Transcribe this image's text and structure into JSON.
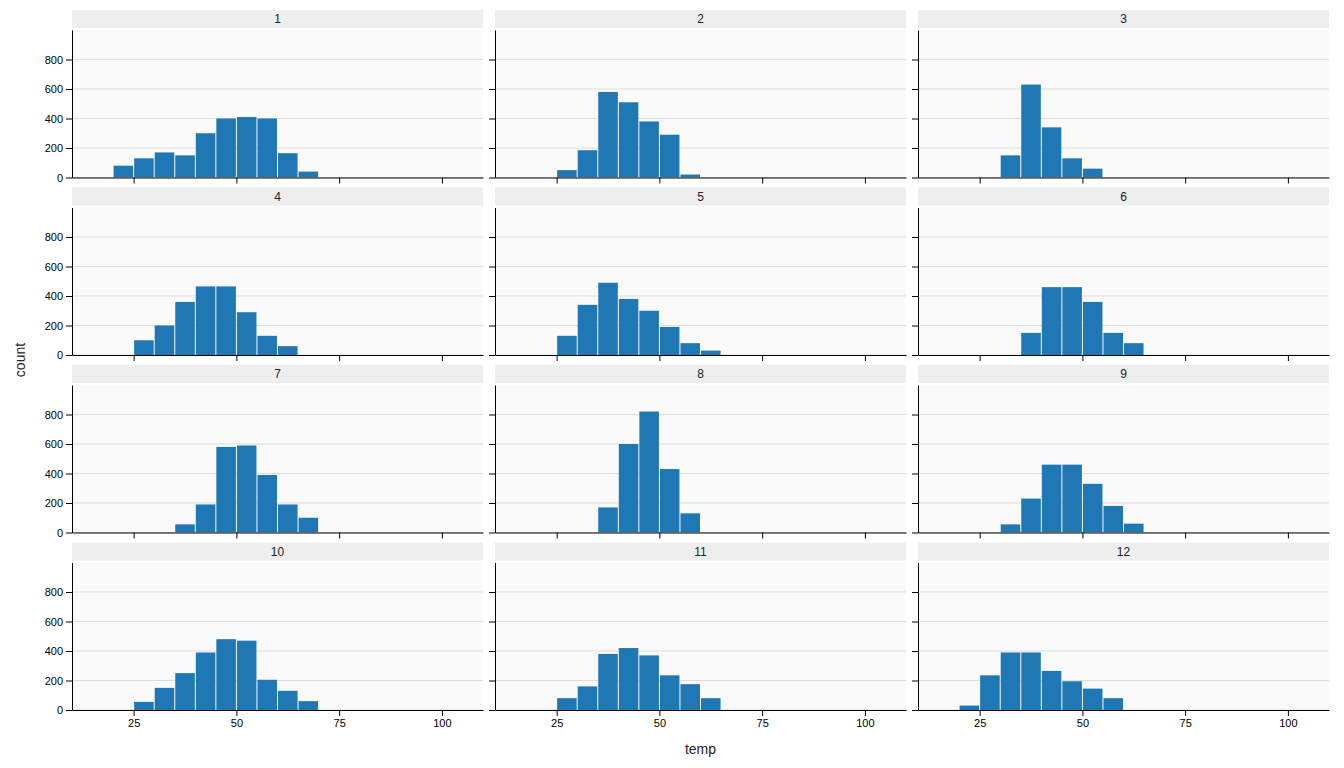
{
  "chart_data": [
    {
      "type": "histogram",
      "title": "1",
      "xlabel": "temp",
      "ylabel": "count",
      "bins": [
        10,
        15,
        20,
        25,
        30,
        35,
        40,
        45,
        50,
        55,
        60,
        65,
        70,
        75,
        80,
        85,
        90,
        95,
        100,
        105,
        110
      ],
      "values": [
        0,
        0,
        80,
        130,
        170,
        150,
        300,
        400,
        410,
        400,
        165,
        40,
        0,
        0,
        0,
        0,
        0,
        0,
        0,
        0
      ],
      "xlim": [
        10,
        110
      ],
      "ylim": [
        0,
        1000
      ],
      "xticks": [
        25,
        50,
        75,
        100
      ],
      "yticks": [
        0,
        200,
        400,
        600,
        800
      ],
      "grid": true,
      "tick_labels": "y"
    },
    {
      "type": "histogram",
      "title": "2",
      "bins": [
        10,
        15,
        20,
        25,
        30,
        35,
        40,
        45,
        50,
        55,
        60,
        65,
        70,
        75,
        80,
        85,
        90,
        95,
        100,
        105,
        110
      ],
      "values": [
        0,
        0,
        0,
        50,
        185,
        580,
        510,
        380,
        290,
        20,
        0,
        0,
        0,
        0,
        0,
        0,
        0,
        0,
        0,
        0
      ],
      "xlim": [
        10,
        110
      ],
      "ylim": [
        0,
        1000
      ],
      "xticks": [
        25,
        50,
        75,
        100
      ],
      "yticks": [
        0,
        200,
        400,
        600,
        800
      ],
      "grid": true,
      "tick_labels": false
    },
    {
      "type": "histogram",
      "title": "3",
      "bins": [
        10,
        15,
        20,
        25,
        30,
        35,
        40,
        45,
        50,
        55,
        60,
        65,
        70,
        75,
        80,
        85,
        90,
        95,
        100,
        105,
        110
      ],
      "values": [
        0,
        0,
        0,
        0,
        150,
        630,
        340,
        130,
        60,
        0,
        0,
        0,
        0,
        0,
        0,
        0,
        0,
        0,
        0,
        0
      ],
      "xlim": [
        10,
        110
      ],
      "ylim": [
        0,
        1000
      ],
      "xticks": [
        25,
        50,
        75,
        100
      ],
      "yticks": [
        0,
        200,
        400,
        600,
        800
      ],
      "grid": true,
      "tick_labels": false
    },
    {
      "type": "histogram",
      "title": "4",
      "bins": [
        10,
        15,
        20,
        25,
        30,
        35,
        40,
        45,
        50,
        55,
        60,
        65,
        70,
        75,
        80,
        85,
        90,
        95,
        100,
        105,
        110
      ],
      "values": [
        0,
        0,
        0,
        100,
        200,
        360,
        465,
        465,
        290,
        130,
        60,
        0,
        0,
        0,
        0,
        0,
        0,
        0,
        0,
        0
      ],
      "xlim": [
        10,
        110
      ],
      "ylim": [
        0,
        1000
      ],
      "xticks": [
        25,
        50,
        75,
        100
      ],
      "yticks": [
        0,
        200,
        400,
        600,
        800
      ],
      "grid": true,
      "tick_labels": "y"
    },
    {
      "type": "histogram",
      "title": "5",
      "bins": [
        10,
        15,
        20,
        25,
        30,
        35,
        40,
        45,
        50,
        55,
        60,
        65,
        70,
        75,
        80,
        85,
        90,
        95,
        100,
        105,
        110
      ],
      "values": [
        0,
        0,
        0,
        130,
        340,
        490,
        380,
        300,
        190,
        80,
        30,
        0,
        0,
        0,
        0,
        0,
        0,
        0,
        0,
        0
      ],
      "xlim": [
        10,
        110
      ],
      "ylim": [
        0,
        1000
      ],
      "xticks": [
        25,
        50,
        75,
        100
      ],
      "yticks": [
        0,
        200,
        400,
        600,
        800
      ],
      "grid": true,
      "tick_labels": false
    },
    {
      "type": "histogram",
      "title": "6",
      "bins": [
        10,
        15,
        20,
        25,
        30,
        35,
        40,
        45,
        50,
        55,
        60,
        65,
        70,
        75,
        80,
        85,
        90,
        95,
        100,
        105,
        110
      ],
      "values": [
        0,
        0,
        0,
        0,
        0,
        150,
        460,
        460,
        360,
        150,
        80,
        0,
        0,
        0,
        0,
        0,
        0,
        0,
        0,
        0
      ],
      "xlim": [
        10,
        110
      ],
      "ylim": [
        0,
        1000
      ],
      "xticks": [
        25,
        50,
        75,
        100
      ],
      "yticks": [
        0,
        200,
        400,
        600,
        800
      ],
      "grid": true,
      "tick_labels": false
    },
    {
      "type": "histogram",
      "title": "7",
      "bins": [
        10,
        15,
        20,
        25,
        30,
        35,
        40,
        45,
        50,
        55,
        60,
        65,
        70,
        75,
        80,
        85,
        90,
        95,
        100,
        105,
        110
      ],
      "values": [
        0,
        0,
        0,
        0,
        0,
        55,
        190,
        580,
        590,
        390,
        190,
        100,
        0,
        0,
        0,
        0,
        0,
        0,
        0,
        0
      ],
      "xlim": [
        10,
        110
      ],
      "ylim": [
        0,
        1000
      ],
      "xticks": [
        25,
        50,
        75,
        100
      ],
      "yticks": [
        0,
        200,
        400,
        600,
        800
      ],
      "grid": true,
      "tick_labels": "y"
    },
    {
      "type": "histogram",
      "title": "8",
      "bins": [
        10,
        15,
        20,
        25,
        30,
        35,
        40,
        45,
        50,
        55,
        60,
        65,
        70,
        75,
        80,
        85,
        90,
        95,
        100,
        105,
        110
      ],
      "values": [
        0,
        0,
        0,
        0,
        0,
        170,
        600,
        820,
        430,
        130,
        0,
        0,
        0,
        0,
        0,
        0,
        0,
        0,
        0,
        0
      ],
      "xlim": [
        10,
        110
      ],
      "ylim": [
        0,
        1000
      ],
      "xticks": [
        25,
        50,
        75,
        100
      ],
      "yticks": [
        0,
        200,
        400,
        600,
        800
      ],
      "grid": true,
      "tick_labels": false
    },
    {
      "type": "histogram",
      "title": "9",
      "bins": [
        10,
        15,
        20,
        25,
        30,
        35,
        40,
        45,
        50,
        55,
        60,
        65,
        70,
        75,
        80,
        85,
        90,
        95,
        100,
        105,
        110
      ],
      "values": [
        0,
        0,
        0,
        0,
        55,
        230,
        460,
        460,
        330,
        180,
        60,
        0,
        0,
        0,
        0,
        0,
        0,
        0,
        0,
        0
      ],
      "xlim": [
        10,
        110
      ],
      "ylim": [
        0,
        1000
      ],
      "xticks": [
        25,
        50,
        75,
        100
      ],
      "yticks": [
        0,
        200,
        400,
        600,
        800
      ],
      "grid": true,
      "tick_labels": false
    },
    {
      "type": "histogram",
      "title": "10",
      "bins": [
        10,
        15,
        20,
        25,
        30,
        35,
        40,
        45,
        50,
        55,
        60,
        65,
        70,
        75,
        80,
        85,
        90,
        95,
        100,
        105,
        110
      ],
      "values": [
        0,
        0,
        0,
        55,
        150,
        250,
        390,
        480,
        470,
        205,
        130,
        60,
        0,
        0,
        0,
        0,
        0,
        0,
        0,
        0
      ],
      "xlim": [
        10,
        110
      ],
      "ylim": [
        0,
        1000
      ],
      "xticks": [
        25,
        50,
        75,
        100
      ],
      "yticks": [
        0,
        200,
        400,
        600,
        800
      ],
      "grid": true
    },
    {
      "type": "histogram",
      "title": "11",
      "bins": [
        10,
        15,
        20,
        25,
        30,
        35,
        40,
        45,
        50,
        55,
        60,
        65,
        70,
        75,
        80,
        85,
        90,
        95,
        100,
        105,
        110
      ],
      "values": [
        0,
        0,
        0,
        80,
        160,
        380,
        420,
        370,
        235,
        175,
        80,
        0,
        0,
        0,
        0,
        0,
        0,
        0,
        0,
        0
      ],
      "xlim": [
        10,
        110
      ],
      "ylim": [
        0,
        1000
      ],
      "xticks": [
        25,
        50,
        75,
        100
      ],
      "yticks": [
        0,
        200,
        400,
        600,
        800
      ],
      "grid": true,
      "tick_labels": "x"
    },
    {
      "type": "histogram",
      "title": "12",
      "bins": [
        10,
        15,
        20,
        25,
        30,
        35,
        40,
        45,
        50,
        55,
        60,
        65,
        70,
        75,
        80,
        85,
        90,
        95,
        100,
        105,
        110
      ],
      "values": [
        0,
        0,
        30,
        235,
        390,
        390,
        265,
        195,
        145,
        80,
        0,
        0,
        0,
        0,
        0,
        0,
        0,
        0,
        0,
        0
      ],
      "xlim": [
        10,
        110
      ],
      "ylim": [
        0,
        1000
      ],
      "xticks": [
        25,
        50,
        75,
        100
      ],
      "yticks": [
        0,
        200,
        400,
        600,
        800
      ],
      "grid": true,
      "tick_labels": "x"
    }
  ]
}
